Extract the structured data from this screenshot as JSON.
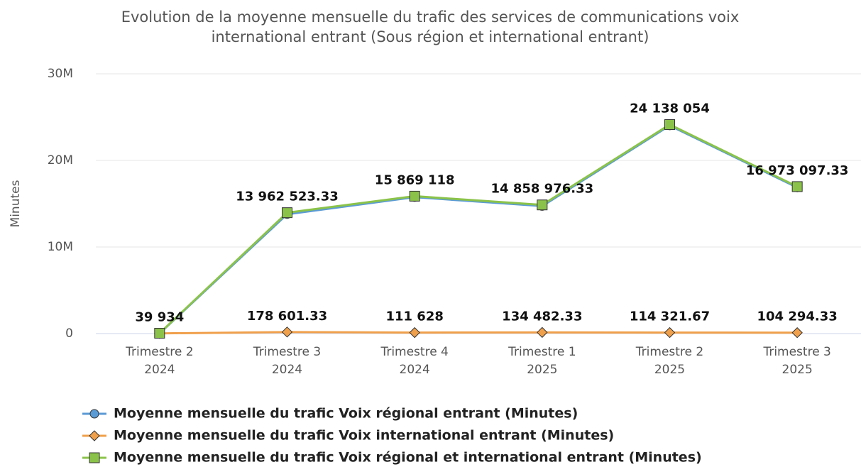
{
  "chart_data": {
    "type": "line",
    "title": [
      "Evolution de la moyenne mensuelle du trafic des services de communications voix",
      "international entrant (Sous région et international entrant)"
    ],
    "y_label": "Minutes",
    "categories": [
      [
        "Trimestre 2",
        "2024"
      ],
      [
        "Trimestre 3",
        "2024"
      ],
      [
        "Trimestre 4",
        "2024"
      ],
      [
        "Trimestre 1",
        "2025"
      ],
      [
        "Trimestre 2",
        "2025"
      ],
      [
        "Trimestre 3",
        "2025"
      ]
    ],
    "ylim": [
      0,
      30000000
    ],
    "yticks": [
      0,
      {
        "value": 10000000,
        "label": "10M"
      },
      {
        "value": 20000000,
        "label": "20M"
      },
      {
        "value": 30000000,
        "label": "30M"
      }
    ],
    "grid": true,
    "legend": "bottom",
    "series": [
      {
        "name": "Moyenne mensuelle du trafic Voix régional entrant (Minutes)",
        "color": "#5b9bd5",
        "marker": "circle",
        "values": [
          20000,
          13783922,
          15757490,
          14724494,
          24023732,
          16868803
        ]
      },
      {
        "name": "Moyenne mensuelle du trafic Voix international entrant (Minutes)",
        "color": "#f0a04b",
        "marker": "diamond",
        "values": [
          19934,
          178601.33,
          111628,
          134482.33,
          114321.67,
          104294.33
        ],
        "value_labels": [
          null,
          "178 601.33",
          "111 628",
          "134 482.33",
          "114 321.67",
          "104 294.33"
        ]
      },
      {
        "name": "Moyenne mensuelle du trafic Voix régional et international entrant (Minutes)",
        "color": "#8bc34a",
        "marker": "square",
        "values": [
          39934,
          13962523.33,
          15869118,
          14858976.33,
          24138054,
          16973097.33
        ],
        "value_labels": [
          "39 934",
          "13 962 523.33",
          "15 869 118",
          "14 858 976.33",
          "24 138 054",
          "16 973 097.33"
        ]
      }
    ]
  }
}
